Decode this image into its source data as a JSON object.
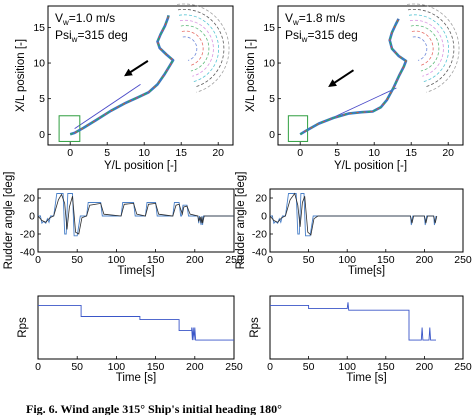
{
  "caption": "Fig. 6. Wind angle 315° Ship's initial heading 180°",
  "colors": {
    "axis": "#000000",
    "track": "#3b78c4",
    "track_alt": "#2ea36b",
    "start_box": "#2e9e3f",
    "reference": "#4a4ac8",
    "rudder_cmd": "#4a80c8",
    "rudder_act": "#2c2c2c",
    "rps": "#3a56c8",
    "arrow": "#000000"
  },
  "chart_data": [
    {
      "id": "track-left",
      "type": "line",
      "annotations": [
        "V",
        "w",
        "=1.0 m/s",
        "Psi",
        "w",
        "=315 deg"
      ],
      "xlabel": "Y/L position [-]",
      "ylabel": "X/L position [-]",
      "xlim": [
        -3,
        22
      ],
      "ylim": [
        -1.5,
        18
      ],
      "xticks": [
        0,
        5,
        10,
        15,
        20
      ],
      "yticks": [
        0,
        5,
        10,
        15
      ],
      "series": [
        {
          "values": [
            [
              0,
              0
            ],
            [
              0.6,
              0.2
            ],
            [
              1.8,
              0.9
            ],
            [
              3.5,
              2.0
            ],
            [
              5.5,
              3.3
            ],
            [
              7.5,
              4.4
            ],
            [
              9.2,
              5.2
            ],
            [
              10.6,
              5.9
            ],
            [
              11.8,
              7.0
            ],
            [
              12.8,
              8.5
            ],
            [
              13.5,
              9.7
            ],
            [
              13.9,
              10.4
            ],
            [
              13.0,
              11.2
            ],
            [
              12.1,
              12.1
            ],
            [
              11.8,
              13.0
            ],
            [
              12.2,
              14.0
            ],
            [
              12.8,
              15.2
            ],
            [
              13.2,
              16.3
            ],
            [
              13.3,
              16.7
            ]
          ]
        }
      ],
      "reference_line": [
        [
          0.6,
          0.8
        ],
        [
          9.5,
          7.0
        ]
      ],
      "arrow": [
        [
          10.5,
          10.3
        ],
        [
          7.5,
          8.3
        ]
      ],
      "start_box": [
        [
          -1.5,
          -1.0
        ],
        [
          1.3,
          2.6
        ]
      ]
    },
    {
      "id": "track-right",
      "type": "line",
      "annotations": [
        "V",
        "w",
        "=1.8 m/s",
        "Psi",
        "w",
        "=315 deg"
      ],
      "xlabel": "Y/L position [-]",
      "ylabel": "X/L position [-]",
      "xlim": [
        -3,
        22
      ],
      "ylim": [
        -1.5,
        18
      ],
      "xticks": [
        0,
        5,
        10,
        15,
        20
      ],
      "yticks": [
        0,
        5,
        10,
        15
      ],
      "series": [
        {
          "values": [
            [
              0,
              0
            ],
            [
              0.8,
              0.5
            ],
            [
              2.5,
              1.5
            ],
            [
              4.5,
              2.3
            ],
            [
              6.5,
              2.9
            ],
            [
              8.3,
              3.1
            ],
            [
              9.8,
              3.2
            ],
            [
              10.9,
              3.8
            ],
            [
              11.7,
              4.8
            ],
            [
              12.6,
              6.5
            ],
            [
              13.4,
              8.3
            ],
            [
              14.0,
              9.5
            ],
            [
              14.3,
              10.3
            ],
            [
              13.3,
              11.0
            ],
            [
              12.4,
              12.0
            ],
            [
              12.1,
              13.2
            ],
            [
              12.4,
              14.3
            ],
            [
              12.9,
              15.4
            ],
            [
              13.3,
              16.2
            ]
          ]
        }
      ],
      "reference_line": [
        [
          0.6,
          0.5
        ],
        [
          13.0,
          6.5
        ]
      ],
      "arrow": [
        [
          7.2,
          9.0
        ],
        [
          4.0,
          6.8
        ]
      ],
      "start_box": [
        [
          -1.6,
          -1.0
        ],
        [
          1.0,
          2.6
        ]
      ]
    },
    {
      "id": "rudder-left",
      "type": "line",
      "xlabel": "Time[s]",
      "ylabel": "Rudder angle [deg]",
      "xlim": [
        0,
        250
      ],
      "ylim": [
        -40,
        30
      ],
      "xticks": [
        0,
        50,
        100,
        150,
        200,
        250
      ],
      "yticks": [
        -40,
        -20,
        0,
        20
      ],
      "series": [
        {
          "role": "command",
          "values": [
            [
              0,
              0
            ],
            [
              3,
              0
            ],
            [
              5,
              -8
            ],
            [
              7,
              -6
            ],
            [
              10,
              -8
            ],
            [
              12,
              -3
            ],
            [
              14,
              -7
            ],
            [
              16,
              0
            ],
            [
              20,
              0
            ],
            [
              24,
              25
            ],
            [
              32,
              25
            ],
            [
              34,
              -20
            ],
            [
              36,
              -20
            ],
            [
              38,
              25
            ],
            [
              44,
              25
            ],
            [
              46,
              -22
            ],
            [
              50,
              -22
            ],
            [
              54,
              0
            ],
            [
              62,
              0
            ],
            [
              64,
              15
            ],
            [
              80,
              15
            ],
            [
              82,
              0
            ],
            [
              106,
              0
            ],
            [
              108,
              15
            ],
            [
              122,
              15
            ],
            [
              124,
              0
            ],
            [
              137,
              0
            ],
            [
              139,
              15
            ],
            [
              150,
              15
            ],
            [
              152,
              0
            ],
            [
              172,
              0
            ],
            [
              174,
              15
            ],
            [
              180,
              15
            ],
            [
              182,
              0
            ],
            [
              183,
              0
            ],
            [
              185,
              12
            ],
            [
              190,
              12
            ],
            [
              192,
              0
            ],
            [
              204,
              0
            ],
            [
              205,
              -8
            ],
            [
              206,
              0
            ],
            [
              208,
              -10
            ],
            [
              209,
              0
            ],
            [
              210,
              -10
            ],
            [
              211,
              0
            ],
            [
              250,
              0
            ]
          ]
        },
        {
          "role": "actual",
          "values": [
            [
              0,
              0
            ],
            [
              5,
              -5
            ],
            [
              10,
              -7
            ],
            [
              15,
              -2
            ],
            [
              20,
              0
            ],
            [
              26,
              18
            ],
            [
              30,
              24
            ],
            [
              34,
              14
            ],
            [
              37,
              -15
            ],
            [
              40,
              10
            ],
            [
              44,
              22
            ],
            [
              48,
              -18
            ],
            [
              52,
              -20
            ],
            [
              56,
              -2
            ],
            [
              62,
              0
            ],
            [
              66,
              12
            ],
            [
              80,
              14
            ],
            [
              84,
              2
            ],
            [
              106,
              0
            ],
            [
              110,
              13
            ],
            [
              122,
              14
            ],
            [
              126,
              2
            ],
            [
              137,
              0
            ],
            [
              141,
              13
            ],
            [
              150,
              14
            ],
            [
              154,
              2
            ],
            [
              172,
              0
            ],
            [
              176,
              12
            ],
            [
              180,
              13
            ],
            [
              184,
              2
            ],
            [
              186,
              10
            ],
            [
              190,
              11
            ],
            [
              194,
              2
            ],
            [
              204,
              0
            ],
            [
              205,
              -6
            ],
            [
              207,
              -1
            ],
            [
              208,
              -8
            ],
            [
              209,
              -1
            ],
            [
              210,
              -8
            ],
            [
              212,
              0
            ],
            [
              250,
              0
            ]
          ]
        }
      ]
    },
    {
      "id": "rudder-right",
      "type": "line",
      "xlabel": "Time[s]",
      "ylabel": "Rudder angle [deg]",
      "xlim": [
        0,
        250
      ],
      "ylim": [
        -40,
        30
      ],
      "xticks": [
        0,
        50,
        100,
        150,
        200,
        250
      ],
      "yticks": [
        -40,
        -20,
        0,
        20
      ],
      "series": [
        {
          "role": "command",
          "values": [
            [
              0,
              0
            ],
            [
              3,
              0
            ],
            [
              5,
              -8
            ],
            [
              7,
              -6
            ],
            [
              10,
              -8
            ],
            [
              12,
              -3
            ],
            [
              14,
              -7
            ],
            [
              16,
              0
            ],
            [
              20,
              0
            ],
            [
              24,
              25
            ],
            [
              34,
              25
            ],
            [
              36,
              -20
            ],
            [
              38,
              -20
            ],
            [
              40,
              25
            ],
            [
              44,
              25
            ],
            [
              46,
              -22
            ],
            [
              52,
              -22
            ],
            [
              56,
              0
            ],
            [
              182,
              0
            ],
            [
              183,
              -10
            ],
            [
              185,
              0
            ],
            [
              200,
              0
            ],
            [
              201,
              -10
            ],
            [
              203,
              0
            ],
            [
              212,
              0
            ],
            [
              213,
              -10
            ],
            [
              215,
              0
            ]
          ]
        },
        {
          "role": "actual",
          "values": [
            [
              0,
              0
            ],
            [
              5,
              -5
            ],
            [
              10,
              -7
            ],
            [
              15,
              -2
            ],
            [
              20,
              0
            ],
            [
              26,
              18
            ],
            [
              32,
              25
            ],
            [
              36,
              12
            ],
            [
              39,
              -12
            ],
            [
              42,
              15
            ],
            [
              45,
              22
            ],
            [
              49,
              -18
            ],
            [
              53,
              -21
            ],
            [
              57,
              -3
            ],
            [
              62,
              0
            ],
            [
              182,
              0
            ],
            [
              184,
              -8
            ],
            [
              186,
              0
            ],
            [
              200,
              0
            ],
            [
              202,
              -8
            ],
            [
              204,
              0
            ],
            [
              212,
              0
            ],
            [
              214,
              -8
            ],
            [
              216,
              0
            ]
          ]
        }
      ]
    },
    {
      "id": "rps-left",
      "type": "line",
      "xlabel": "Time [s]",
      "ylabel": "Rps",
      "xlim": [
        0,
        250
      ],
      "ylim": [
        -20,
        20
      ],
      "xticks": [
        0,
        50,
        100,
        150,
        200,
        250
      ],
      "series": [
        {
          "values": [
            [
              0,
              14
            ],
            [
              55,
              14
            ],
            [
              55,
              7
            ],
            [
              130,
              7
            ],
            [
              130,
              5
            ],
            [
              180,
              5
            ],
            [
              180,
              -2
            ],
            [
              196,
              -2
            ],
            [
              196,
              0
            ],
            [
              197,
              -8
            ],
            [
              198,
              0
            ],
            [
              199,
              -8
            ],
            [
              200,
              0
            ],
            [
              201,
              -8
            ],
            [
              250,
              -8
            ]
          ]
        }
      ]
    },
    {
      "id": "rps-right",
      "type": "line",
      "xlabel": "Time [s]",
      "ylabel": "Rps",
      "xlim": [
        0,
        250
      ],
      "ylim": [
        -20,
        20
      ],
      "xticks": [
        0,
        50,
        100,
        150,
        200,
        250
      ],
      "series": [
        {
          "values": [
            [
              0,
              14
            ],
            [
              50,
              14
            ],
            [
              50,
              12
            ],
            [
              100,
              12
            ],
            [
              101,
              16
            ],
            [
              102,
              11
            ],
            [
              180,
              11
            ],
            [
              180,
              -8
            ],
            [
              196,
              -8
            ],
            [
              197,
              0
            ],
            [
              198,
              -8
            ],
            [
              206,
              -8
            ],
            [
              207,
              0
            ],
            [
              208,
              -8
            ],
            [
              215,
              -8
            ]
          ]
        }
      ]
    }
  ]
}
